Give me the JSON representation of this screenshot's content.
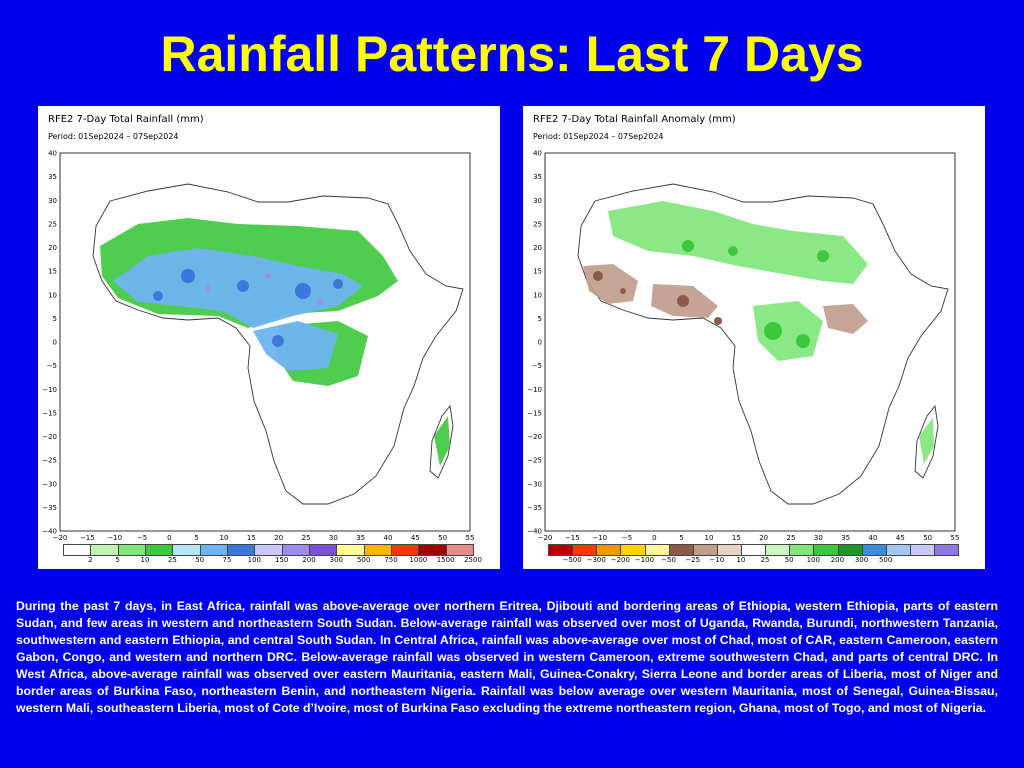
{
  "slide": {
    "title": "Rainfall Patterns: Last 7 Days",
    "description": "During the past 7 days, in East Africa, rainfall was above-average over northern Eritrea, Djibouti and bordering areas of Ethiopia, western Ethiopia, parts of eastern Sudan, and few areas in western and northeastern South Sudan. Below-average rainfall was observed over most of Uganda, Rwanda, Burundi, northwestern Tanzania, southwestern and eastern Ethiopia, and central South Sudan. In Central Africa, rainfall was above-average over most of Chad, most of CAR, eastern Cameroon, eastern Gabon, Congo, and western and northern DRC. Below-average rainfall was observed in western Cameroon, extreme southwestern Chad, and parts of central DRC. In West Africa, above-average rainfall was observed over eastern Mauritania, eastern Mali, Guinea-Conakry, Sierra Leone and border areas of Liberia, most of Niger and border areas of Burkina Faso, northeastern Benin, and northeastern Nigeria. Rainfall was below average over western Mauritania, most of Senegal, Guinea-Bissau, western Mali, southeastern Liberia, most of Cote d’Ivoire, most of Burkina Faso excluding the extreme northeastern region, Ghana, most of Togo, and most of Nigeria."
  },
  "axes": {
    "lat_ticks": [
      "40",
      "35",
      "30",
      "25",
      "20",
      "15",
      "10",
      "5",
      "0",
      "−5",
      "−10",
      "−15",
      "−20",
      "−25",
      "−30",
      "−35",
      "−40"
    ],
    "lon_ticks": [
      "−20",
      "−15",
      "−10",
      "−5",
      "0",
      "5",
      "10",
      "15",
      "20",
      "25",
      "30",
      "35",
      "40",
      "45",
      "50",
      "55"
    ]
  },
  "maps": {
    "total": {
      "title": "RFE2 7-Day Total Rainfall (mm)",
      "period": "Period: 01Sep2024 – 07Sep2024",
      "legend_colors": [
        "#ffffff",
        "#bff5b0",
        "#7fe67a",
        "#3cc83c",
        "#b4e6f5",
        "#6eb4f0",
        "#3c78dc",
        "#c8c8ff",
        "#9c8cf0",
        "#7850dc",
        "#ffff96",
        "#ffb400",
        "#e63c00",
        "#a00000",
        "#e68c8c"
      ],
      "legend_labels": [
        "2",
        "5",
        "10",
        "25",
        "50",
        "75",
        "100",
        "150",
        "200",
        "300",
        "500",
        "750",
        "1000",
        "1500",
        "2500"
      ]
    },
    "anomaly": {
      "title": "RFE2 7-Day Total Rainfall Anomaly (mm)",
      "period": "Period: 01Sep2024 – 07Sep2024",
      "legend_colors": [
        "#b40000",
        "#f03c00",
        "#ff9600",
        "#ffd200",
        "#fff59b",
        "#8c5a46",
        "#bf9b8c",
        "#e6d2c8",
        "#ffffff",
        "#c8f5c0",
        "#7fe67a",
        "#3cc83c",
        "#1e9628",
        "#3c8cdc",
        "#a0c8f0",
        "#c8c8ff",
        "#8c78e6"
      ],
      "legend_labels": [
        "−500",
        "−300",
        "−200",
        "−100",
        "−50",
        "−25",
        "−10",
        "10",
        "25",
        "50",
        "100",
        "200",
        "300",
        "500"
      ]
    }
  }
}
